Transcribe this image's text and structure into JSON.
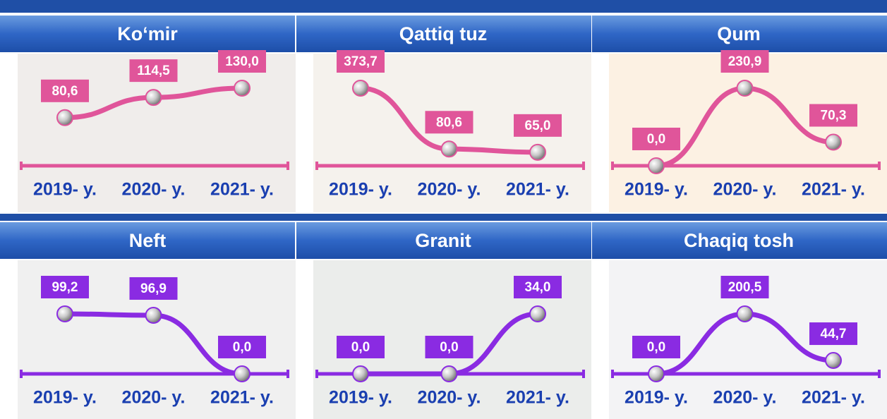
{
  "chart_data": [
    {
      "type": "line",
      "title": "Ko‘mir",
      "categories": [
        "2019- y.",
        "2020- y.",
        "2021- y."
      ],
      "values": [
        80.6,
        114.5,
        130.0
      ],
      "value_labels": [
        "80,6",
        "114,5",
        "130,0"
      ],
      "color": "#e0559a"
    },
    {
      "type": "line",
      "title": "Qattiq tuz",
      "categories": [
        "2019- y.",
        "2020- y.",
        "2021- y."
      ],
      "values": [
        373.7,
        80.6,
        65.0
      ],
      "value_labels": [
        "373,7",
        "80,6",
        "65,0"
      ],
      "color": "#e0559a"
    },
    {
      "type": "line",
      "title": "Qum",
      "categories": [
        "2019- y.",
        "2020- y.",
        "2021- y."
      ],
      "values": [
        0.0,
        230.9,
        70.3
      ],
      "value_labels": [
        "0,0",
        "230,9",
        "70,3"
      ],
      "color": "#e0559a"
    },
    {
      "type": "line",
      "title": "Neft",
      "categories": [
        "2019- y.",
        "2020- y.",
        "2021- y."
      ],
      "values": [
        99.2,
        96.9,
        0.0
      ],
      "value_labels": [
        "99,2",
        "96,9",
        "0,0"
      ],
      "color": "#8a2be2"
    },
    {
      "type": "line",
      "title": "Granit",
      "categories": [
        "2019- y.",
        "2020- y.",
        "2021- y."
      ],
      "values": [
        0.0,
        0.0,
        34.0
      ],
      "value_labels": [
        "0,0",
        "0,0",
        "34,0"
      ],
      "color": "#8a2be2"
    },
    {
      "type": "line",
      "title": "Chaqiq tosh",
      "categories": [
        "2019- y.",
        "2020- y.",
        "2021- y."
      ],
      "values": [
        0.0,
        200.5,
        44.7
      ],
      "value_labels": [
        "0,0",
        "200,5",
        "44,7"
      ],
      "color": "#8a2be2"
    }
  ]
}
